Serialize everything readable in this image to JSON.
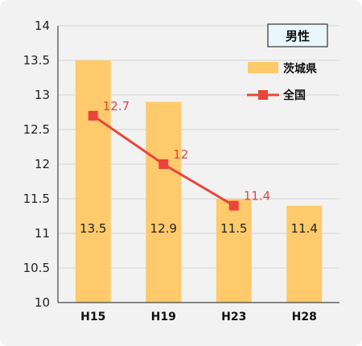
{
  "chart_data": {
    "type": "bar",
    "title": "男性",
    "categories": [
      "H15",
      "H19",
      "H23",
      "H28"
    ],
    "ylim": [
      10,
      14
    ],
    "yticks": [
      "10",
      "10.5",
      "11",
      "11.5",
      "12",
      "12.5",
      "13",
      "13.5",
      "14"
    ],
    "grid": true,
    "legend_position": "top-right",
    "series": [
      {
        "name": "茨城県",
        "type": "bar",
        "color": "#ffca6b",
        "values": [
          13.5,
          12.9,
          11.5,
          11.4
        ],
        "labels": [
          "13.5",
          "12.9",
          "11.5",
          "11.4"
        ]
      },
      {
        "name": "全国",
        "type": "line",
        "color": "#e8453c",
        "values": [
          12.7,
          12.0,
          11.4,
          null
        ],
        "labels": [
          "12.7",
          "12",
          "11.4",
          ""
        ]
      }
    ]
  }
}
